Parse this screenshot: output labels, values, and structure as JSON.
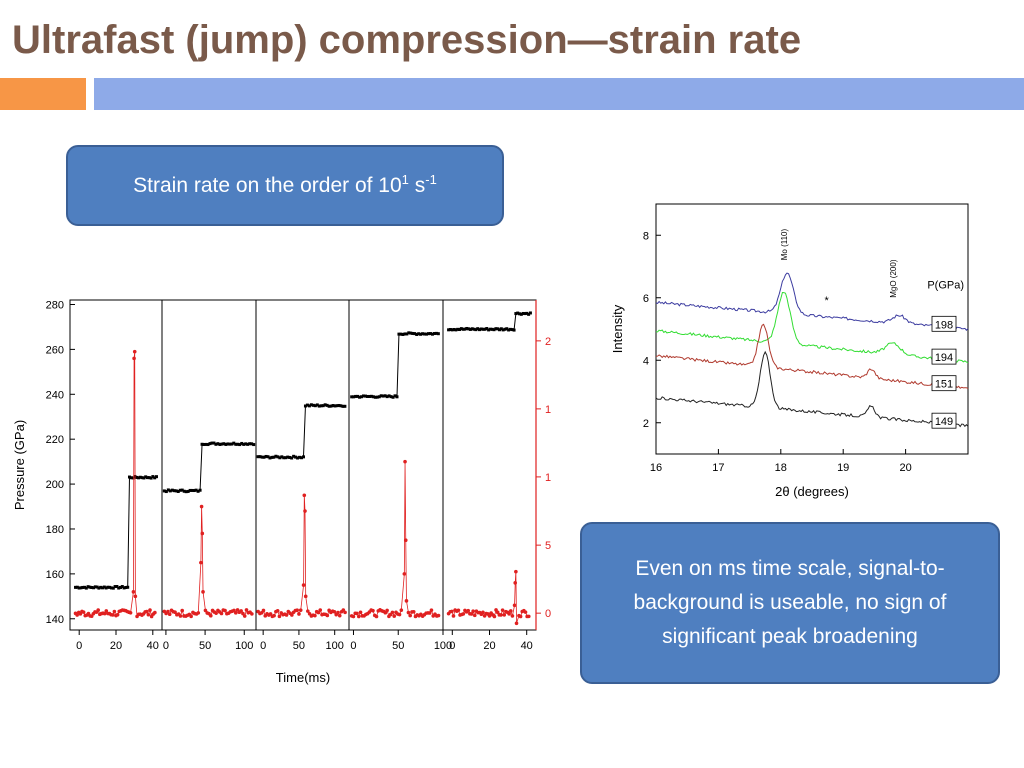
{
  "slide": {
    "title": "Ultrafast (jump) compression—strain rate",
    "callout_top": {
      "text": "Strain rate on the order of 10",
      "sup1": "1",
      "mid": " s",
      "sup2": "-1"
    },
    "callout_bottom": "Even on ms time scale, signal-to-background is useable, no sign of significant peak broadening",
    "colors": {
      "title": "#7a5a4a",
      "accent_orange": "#f79646",
      "accent_blue": "#8eaae8",
      "callout_fill": "#4f7fc0"
    }
  },
  "chart_data": [
    {
      "type": "scatter",
      "xlabel": "Time(ms)",
      "ylabel": "Pressure (GPa)",
      "ylim": [
        135,
        282
      ],
      "yticks": [
        140,
        160,
        180,
        200,
        220,
        240,
        260,
        280
      ],
      "right_ticks": [
        {
          "label": "0",
          "pressure": 142.5
        },
        {
          "label": "5",
          "pressure": 172.8
        },
        {
          "label": "1",
          "pressure": 203.2
        },
        {
          "label": "1",
          "pressure": 233.5
        },
        {
          "label": "2",
          "pressure": 263.8
        }
      ],
      "panels": [
        {
          "xlim": [
            -5,
            45
          ],
          "xticks": [
            "0",
            "20",
            "40"
          ],
          "low": 154,
          "high": 203,
          "jump": 27,
          "spike_at": 30,
          "spike": [
            152,
            256,
            259,
            150
          ],
          "baseline": 142.5
        },
        {
          "xlim": [
            -5,
            115
          ],
          "xticks": [
            "0",
            "50",
            "100"
          ],
          "low": 197,
          "high": 218,
          "jump": 46,
          "spike_at": 46,
          "spike": [
            165,
            190,
            178,
            152
          ],
          "baseline": 142.5
        },
        {
          "xlim": [
            -10,
            120
          ],
          "xticks": [
            "0",
            "50",
            "100"
          ],
          "low": 212,
          "high": 235,
          "jump": 58,
          "spike_at": 58,
          "spike": [
            155,
            195,
            188,
            150
          ],
          "baseline": 142.5
        },
        {
          "xlim": [
            -5,
            100
          ],
          "xticks": [
            "0",
            "50",
            "100"
          ],
          "low": 239,
          "high": 267,
          "jump": 50,
          "spike_at": 58,
          "spike": [
            160,
            210,
            175,
            148
          ],
          "baseline": 142.5
        },
        {
          "xlim": [
            -5,
            45
          ],
          "xticks": [
            "0",
            "20",
            "40"
          ],
          "low": 269,
          "high": 276,
          "jump": 34,
          "spike_at": 34,
          "spike": [
            146,
            156,
            161,
            138
          ],
          "baseline": 142.5
        }
      ]
    },
    {
      "type": "line",
      "xlabel": "2θ (degrees)",
      "ylabel": "Intensity",
      "xlim": [
        16,
        21
      ],
      "ylim": [
        1,
        9
      ],
      "xticks": [
        16,
        17,
        18,
        19,
        20
      ],
      "yticks": [
        2,
        4,
        6,
        8
      ],
      "legend_title": "P(GPa)",
      "annotations": [
        {
          "text": "Mo (110)",
          "x": 18.1,
          "y": 7.2
        },
        {
          "text": "MgO (200)",
          "x": 19.85,
          "y": 6.0
        },
        {
          "text": "*",
          "x": 18.7,
          "y": 5.8
        }
      ],
      "series": [
        {
          "name": "198",
          "color": "#3c3ca0",
          "start": 5.85,
          "end": 5.0,
          "peaks": [
            [
              18.1,
              1.3,
              0.1
            ],
            [
              19.9,
              0.25,
              0.1
            ]
          ]
        },
        {
          "name": "194",
          "color": "#33dd33",
          "start": 4.95,
          "end": 3.95,
          "peaks": [
            [
              18.05,
              1.65,
              0.1
            ],
            [
              19.8,
              0.35,
              0.12
            ]
          ]
        },
        {
          "name": "151",
          "color": "#b03a2e",
          "start": 4.15,
          "end": 3.1,
          "peaks": [
            [
              17.72,
              1.35,
              0.08
            ],
            [
              19.45,
              0.3,
              0.06
            ]
          ]
        },
        {
          "name": "149",
          "color": "#222222",
          "start": 2.8,
          "end": 1.9,
          "peaks": [
            [
              17.75,
              1.75,
              0.08
            ],
            [
              19.45,
              0.35,
              0.06
            ]
          ]
        }
      ]
    }
  ]
}
